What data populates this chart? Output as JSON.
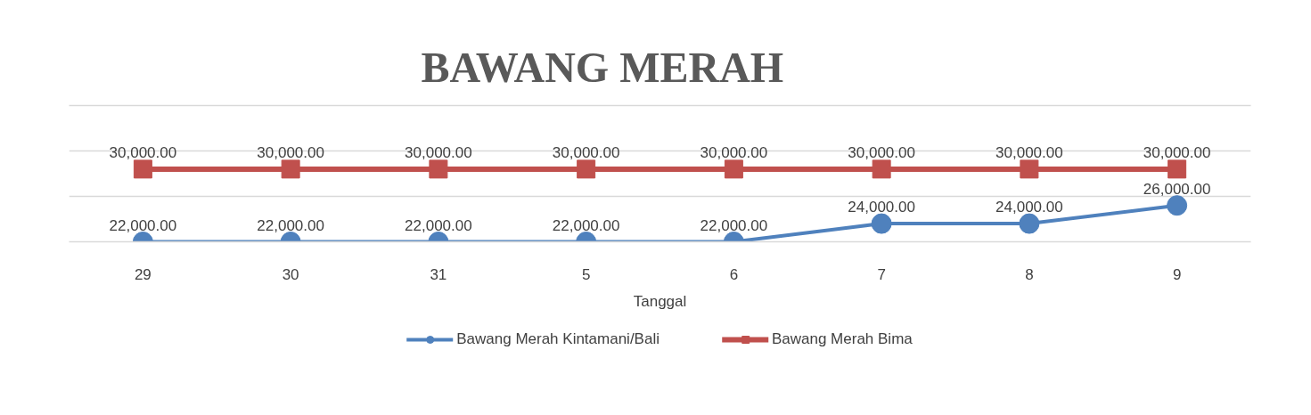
{
  "chart_data": {
    "type": "line",
    "title": "BAWANG MERAH",
    "xlabel": "Tanggal",
    "categories": [
      "29",
      "30",
      "31",
      "5",
      "6",
      "7",
      "8",
      "9"
    ],
    "series": [
      {
        "name": "Bawang Merah Kintamani/Bali",
        "color": "#4f81bd",
        "marker": "circle",
        "values": [
          22000,
          22000,
          22000,
          22000,
          22000,
          24000,
          24000,
          26000
        ],
        "value_labels": [
          "22,000.00",
          "22,000.00",
          "22,000.00",
          "22,000.00",
          "22,000.00",
          "24,000.00",
          "24,000.00",
          "26,000.00"
        ]
      },
      {
        "name": "Bawang Merah Bima",
        "color": "#c0504d",
        "marker": "square",
        "values": [
          30000,
          30000,
          30000,
          30000,
          30000,
          30000,
          30000,
          30000
        ],
        "value_labels": [
          "30,000.00",
          "30,000.00",
          "30,000.00",
          "30,000.00",
          "30,000.00",
          "30,000.00",
          "30,000.00",
          "30,000.00"
        ]
      }
    ],
    "ylim": [
      22000,
      37000
    ],
    "yticks": [
      {
        "value": 22000,
        "label": null
      },
      {
        "value": 27000,
        "label": null
      },
      {
        "value": 32000,
        "label": null
      },
      {
        "value": 37000,
        "label": null
      }
    ],
    "tick_labels": "x",
    "grid": "y",
    "legend": "bottom",
    "line_style": "solid"
  }
}
